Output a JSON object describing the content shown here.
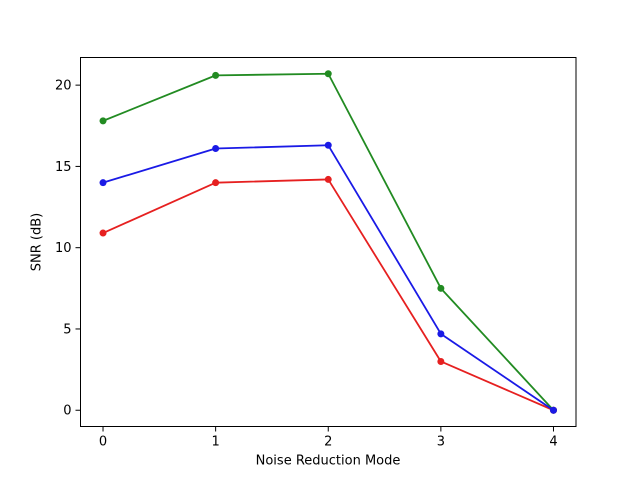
{
  "figure": {
    "background": "#ffffff",
    "title": ""
  },
  "chart_data": {
    "type": "line",
    "title": "",
    "xlabel": "Noise Reduction Mode",
    "ylabel": "SNR (dB)",
    "x": [
      0,
      1,
      2,
      3,
      4
    ],
    "series": [
      {
        "name": "green",
        "color": "#228b22",
        "values": [
          17.8,
          20.6,
          20.7,
          7.5,
          0.0
        ]
      },
      {
        "name": "red",
        "color": "#e62020",
        "values": [
          10.9,
          14.0,
          14.2,
          3.0,
          0.0
        ]
      },
      {
        "name": "blue",
        "color": "#1a1ae6",
        "values": [
          14.0,
          16.1,
          16.3,
          4.7,
          0.0
        ]
      }
    ],
    "xlim": [
      -0.2,
      4.2
    ],
    "ylim": [
      -1.0,
      21.7
    ],
    "xticks": [
      0,
      1,
      2,
      3,
      4
    ],
    "yticks": [
      0,
      5,
      10,
      15,
      20
    ],
    "grid": false,
    "legend": null,
    "marker": "o",
    "marker_radius": 3.5,
    "line_width": 1.8,
    "axis_color": "#000000"
  }
}
